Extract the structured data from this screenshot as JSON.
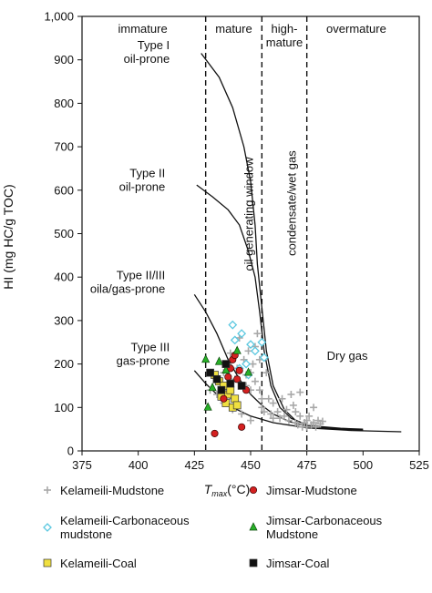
{
  "chart_data": {
    "type": "scatter",
    "xlabel_main": "T",
    "xlabel_sub": "max",
    "xlabel_unit": "(°C)",
    "ylabel": "HI (mg HC/g TOC)",
    "xlim": [
      375,
      525
    ],
    "ylim": [
      0,
      1000
    ],
    "xticks": [
      "375",
      "400",
      "425",
      "450",
      "475",
      "500",
      "525"
    ],
    "yticks": [
      "0",
      "100",
      "200",
      "300",
      "400",
      "500",
      "600",
      "700",
      "800",
      "900",
      "1,000"
    ],
    "zone_boundaries": [
      430,
      455,
      475
    ],
    "zones": [
      {
        "label": "immature",
        "x": 402
      },
      {
        "label": "mature",
        "x": 442.5
      },
      {
        "label": "high-\nmature",
        "x": 465
      },
      {
        "label": "overmature",
        "x": 497
      }
    ],
    "vertical_annotations": [
      {
        "text": "oil generating window",
        "x": 451,
        "y": 545
      },
      {
        "text": "condensate/wet gas",
        "x": 470,
        "y": 570
      }
    ],
    "region_labels": [
      {
        "text": "Dry gas",
        "x": 493,
        "y": 210
      }
    ],
    "type_labels": [
      {
        "text": "Type I\noil-prone",
        "x": 414,
        "y": 925
      },
      {
        "text": "Type II\noil-prone",
        "x": 412,
        "y": 630
      },
      {
        "text": "Type II/III\noila/gas-prone",
        "x": 412,
        "y": 395
      },
      {
        "text": "Type III\ngas-prone",
        "x": 414,
        "y": 230
      }
    ],
    "type_curves": [
      {
        "name": "Type I",
        "points": [
          [
            428,
            915
          ],
          [
            436,
            860
          ],
          [
            442,
            790
          ],
          [
            447,
            700
          ],
          [
            450,
            620
          ],
          [
            452,
            520
          ],
          [
            453,
            430
          ],
          [
            455,
            330
          ],
          [
            457,
            230
          ],
          [
            460,
            150
          ],
          [
            465,
            95
          ],
          [
            470,
            70
          ],
          [
            478,
            55
          ],
          [
            490,
            50
          ],
          [
            500,
            48
          ]
        ]
      },
      {
        "name": "Type II",
        "points": [
          [
            426,
            612
          ],
          [
            433,
            585
          ],
          [
            440,
            555
          ],
          [
            445,
            520
          ],
          [
            449,
            460
          ],
          [
            452,
            400
          ],
          [
            454,
            320
          ],
          [
            456,
            230
          ],
          [
            459,
            150
          ],
          [
            463,
            100
          ],
          [
            468,
            75
          ],
          [
            476,
            58
          ],
          [
            490,
            52
          ],
          [
            500,
            50
          ]
        ]
      },
      {
        "name": "Type II/III",
        "points": [
          [
            425,
            360
          ],
          [
            430,
            320
          ],
          [
            435,
            270
          ],
          [
            440,
            210
          ],
          [
            445,
            165
          ],
          [
            450,
            130
          ],
          [
            455,
            105
          ],
          [
            460,
            85
          ],
          [
            467,
            68
          ],
          [
            476,
            56
          ],
          [
            490,
            50
          ],
          [
            500,
            48
          ]
        ]
      },
      {
        "name": "Type III",
        "points": [
          [
            425,
            185
          ],
          [
            430,
            155
          ],
          [
            436,
            125
          ],
          [
            442,
            100
          ],
          [
            450,
            80
          ],
          [
            460,
            65
          ],
          [
            475,
            53
          ],
          [
            495,
            47
          ],
          [
            517,
            44
          ]
        ]
      }
    ],
    "series": [
      {
        "name": "Kelameili-Mudstone",
        "marker": "plus",
        "color": "#a8a8a8",
        "points": [
          [
            432,
            140
          ],
          [
            435,
            130
          ],
          [
            436,
            160
          ],
          [
            438,
            180
          ],
          [
            440,
            200
          ],
          [
            441,
            225
          ],
          [
            442,
            120
          ],
          [
            443,
            165
          ],
          [
            444,
            190
          ],
          [
            445,
            260
          ],
          [
            446,
            270
          ],
          [
            447,
            210
          ],
          [
            448,
            150
          ],
          [
            448,
            175
          ],
          [
            449,
            230
          ],
          [
            450,
            140
          ],
          [
            450,
            180
          ],
          [
            451,
            200
          ],
          [
            452,
            240
          ],
          [
            452,
            160
          ],
          [
            453,
            270
          ],
          [
            454,
            210
          ],
          [
            454,
            140
          ],
          [
            455,
            100
          ],
          [
            456,
            90
          ],
          [
            457,
            180
          ],
          [
            458,
            120
          ],
          [
            459,
            85
          ],
          [
            460,
            110
          ],
          [
            462,
            90
          ],
          [
            463,
            75
          ],
          [
            465,
            80
          ],
          [
            466,
            95
          ],
          [
            467,
            70
          ],
          [
            468,
            130
          ],
          [
            469,
            105
          ],
          [
            470,
            65
          ],
          [
            471,
            60
          ],
          [
            472,
            80
          ],
          [
            472,
            135
          ],
          [
            473,
            55
          ],
          [
            474,
            65
          ],
          [
            475,
            70
          ],
          [
            475,
            55
          ],
          [
            476,
            80
          ],
          [
            477,
            60
          ],
          [
            478,
            65
          ],
          [
            478,
            100
          ],
          [
            479,
            55
          ],
          [
            480,
            70
          ],
          [
            481,
            62
          ],
          [
            482,
            68
          ],
          [
            438,
            110
          ],
          [
            442,
            95
          ],
          [
            446,
            85
          ],
          [
            450,
            70
          ],
          [
            455,
            120
          ],
          [
            460,
            75
          ],
          [
            464,
            120
          ],
          [
            470,
            90
          ]
        ]
      },
      {
        "name": "Kelameili-Carbonaceous mudstone",
        "marker": "diamond",
        "color": "#5bc8e0",
        "points": [
          [
            442,
            290
          ],
          [
            446,
            270
          ],
          [
            443,
            255
          ],
          [
            450,
            245
          ],
          [
            452,
            230
          ],
          [
            455,
            250
          ],
          [
            456,
            215
          ],
          [
            448,
            200
          ],
          [
            445,
            190
          ],
          [
            449,
            175
          ]
        ]
      },
      {
        "name": "Kelameili-Coal",
        "marker": "square",
        "color": "#f0e040",
        "points": [
          [
            434,
            175
          ],
          [
            436,
            160
          ],
          [
            437,
            125
          ],
          [
            438,
            150
          ],
          [
            439,
            110
          ],
          [
            440,
            130
          ],
          [
            441,
            140
          ],
          [
            442,
            100
          ],
          [
            443,
            120
          ],
          [
            444,
            105
          ]
        ]
      },
      {
        "name": "Jimsar-Mudstone",
        "marker": "circle",
        "color": "#d42020",
        "points": [
          [
            434,
            40
          ],
          [
            438,
            120
          ],
          [
            440,
            170
          ],
          [
            441,
            190
          ],
          [
            442,
            210
          ],
          [
            443,
            220
          ],
          [
            444,
            165
          ],
          [
            445,
            185
          ],
          [
            446,
            55
          ],
          [
            448,
            140
          ]
        ]
      },
      {
        "name": "Jimsar-Carbonaceous Mudstone",
        "marker": "triangle",
        "color": "#28b028",
        "points": [
          [
            430,
            210
          ],
          [
            431,
            100
          ],
          [
            433,
            145
          ],
          [
            436,
            205
          ],
          [
            439,
            185
          ],
          [
            444,
            230
          ],
          [
            449,
            180
          ]
        ]
      },
      {
        "name": "Jimsar-Coal",
        "marker": "square",
        "color": "#111111",
        "points": [
          [
            432,
            180
          ],
          [
            435,
            165
          ],
          [
            437,
            140
          ],
          [
            439,
            200
          ],
          [
            441,
            155
          ],
          [
            446,
            150
          ]
        ]
      }
    ]
  },
  "legend": [
    {
      "label": "Kelameili-Mudstone",
      "marker": "plus",
      "color": "#a8a8a8"
    },
    {
      "label": "Jimsar-Mudstone",
      "marker": "circle",
      "color": "#d42020"
    },
    {
      "label": "Kelameili-Carbonaceous\nmudstone",
      "marker": "diamond",
      "color": "#5bc8e0"
    },
    {
      "label": "Jimsar-Carbonaceous\nMudstone",
      "marker": "triangle",
      "color": "#28b028"
    },
    {
      "label": "Kelameili-Coal",
      "marker": "square",
      "color": "#f0e040"
    },
    {
      "label": "Jimsar-Coal",
      "marker": "square",
      "color": "#111111"
    }
  ]
}
